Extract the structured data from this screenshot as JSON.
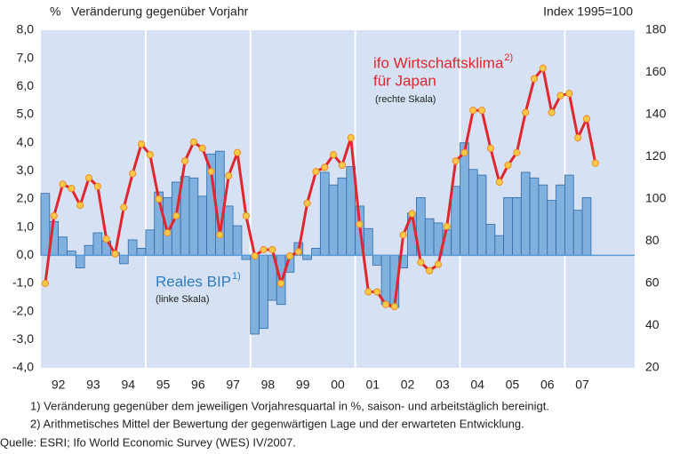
{
  "chart_data": {
    "type": "bar_line",
    "title": "Veränderung gegenüber Vorjahr",
    "y_unit": "%",
    "y2_title": "Index 1995=100",
    "categories": [
      null,
      "92",
      null,
      null,
      null,
      "93",
      null,
      null,
      null,
      "94",
      null,
      null,
      null,
      "95",
      null,
      null,
      null,
      "96",
      null,
      null,
      null,
      "97",
      null,
      null,
      null,
      "98",
      null,
      null,
      null,
      "99",
      null,
      null,
      null,
      "00",
      null,
      null,
      null,
      "01",
      null,
      null,
      null,
      "02",
      null,
      null,
      null,
      "03",
      null,
      null,
      null,
      "04",
      null,
      null,
      null,
      "05",
      null,
      null,
      null,
      "06",
      null,
      null,
      null,
      "07",
      null,
      null,
      null,
      null,
      null,
      null
    ],
    "series": [
      {
        "name": "Reales BIP",
        "name_note": "1)",
        "subtitle": "(linke Skala)",
        "type": "bar",
        "color": "#7fb0de",
        "edge": "#2e6aa8",
        "values": [
          2.2,
          1.2,
          0.65,
          0.15,
          -0.45,
          0.35,
          0.8,
          0.5,
          0.1,
          -0.3,
          0.55,
          0.25,
          0.9,
          2.25,
          2.05,
          2.6,
          2.8,
          2.75,
          2.1,
          3.6,
          3.7,
          1.75,
          1.05,
          -0.15,
          -2.8,
          -2.6,
          -1.6,
          -1.75,
          -0.6,
          0.45,
          -0.15,
          0.25,
          2.95,
          2.5,
          2.75,
          3.15,
          1.75,
          0.95,
          -0.35,
          -1.75,
          -1.85,
          -0.45,
          1.5,
          2.05,
          1.3,
          1.15,
          0.9,
          2.45,
          4.0,
          3.05,
          2.85,
          1.1,
          0.7,
          2.05,
          2.05,
          2.95,
          2.75,
          2.5,
          1.95,
          2.5,
          2.85,
          1.6,
          2.05,
          null,
          null,
          null,
          null,
          null
        ]
      },
      {
        "name": "ifo Wirtschaftsklima",
        "name_note": "2)",
        "name_line2": "für Japan",
        "subtitle": "(rechte Skala)",
        "type": "line",
        "axis": "y2",
        "color": "#e0262e",
        "marker_color": "#f7c948",
        "values": [
          60,
          92,
          107,
          105,
          97,
          110,
          106,
          81,
          74,
          96,
          112,
          126,
          121,
          100,
          84,
          92,
          118,
          127,
          124,
          113,
          83,
          111,
          122,
          92,
          73,
          76,
          76,
          60,
          73,
          75,
          98,
          113,
          115,
          121,
          116,
          129,
          88,
          56,
          56,
          50,
          49,
          83,
          93,
          70,
          66,
          69,
          87,
          118,
          122,
          142,
          142,
          124,
          108,
          116,
          122,
          141,
          157,
          162,
          141,
          149,
          150,
          129,
          138,
          117,
          null,
          null,
          null,
          null
        ]
      }
    ],
    "ylim": [
      -4,
      8
    ],
    "yticks": [
      {
        "value": -4,
        "label": "-4,0"
      },
      {
        "value": -3,
        "label": "-3,0"
      },
      {
        "value": -2,
        "label": "-2,0"
      },
      {
        "value": -1,
        "label": "-1,0"
      },
      {
        "value": 0,
        "label": "0,0"
      },
      {
        "value": 1,
        "label": "1,0"
      },
      {
        "value": 2,
        "label": "2,0"
      },
      {
        "value": 3,
        "label": "3,0"
      },
      {
        "value": 4,
        "label": "4,0"
      },
      {
        "value": 5,
        "label": "5,0"
      },
      {
        "value": 6,
        "label": "6,0"
      },
      {
        "value": 7,
        "label": "7,0"
      },
      {
        "value": 8,
        "label": "8,0"
      }
    ],
    "y2lim": [
      20,
      180
    ],
    "y2ticks": [
      20,
      40,
      60,
      80,
      100,
      120,
      140,
      160,
      180
    ],
    "footnotes": [
      "1) Veränderung gegenüber dem jeweiligen Vorjahresquartal in %, saison- und arbeitstäglich bereinigt.",
      "2) Arithmetisches Mittel der Bewertung der gegenwärtigen Lage und der erwarteten Entwicklung."
    ],
    "source": "Quelle: ESRI; Ifo World Economic Survey (WES) IV/2007."
  }
}
